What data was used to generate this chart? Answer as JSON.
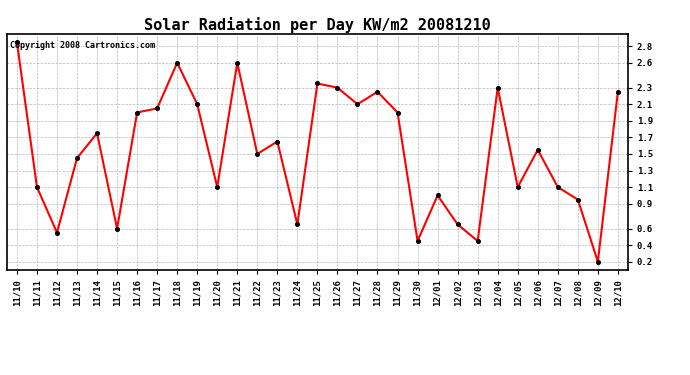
{
  "title": "Solar Radiation per Day KW/m2 20081210",
  "copyright": "Copyright 2008 Cartronics.com",
  "labels": [
    "11/10",
    "11/11",
    "11/12",
    "11/13",
    "11/14",
    "11/15",
    "11/16",
    "11/17",
    "11/18",
    "11/19",
    "11/20",
    "11/21",
    "11/22",
    "11/23",
    "11/24",
    "11/25",
    "11/26",
    "11/27",
    "11/28",
    "11/29",
    "11/30",
    "12/01",
    "12/02",
    "12/03",
    "12/04",
    "12/05",
    "12/06",
    "12/07",
    "12/08",
    "12/09",
    "12/10"
  ],
  "values": [
    2.85,
    1.1,
    0.55,
    1.45,
    1.75,
    0.6,
    2.0,
    2.05,
    2.6,
    2.1,
    1.1,
    2.6,
    1.5,
    1.65,
    0.65,
    2.35,
    2.3,
    2.1,
    2.25,
    2.0,
    0.45,
    1.0,
    0.65,
    0.45,
    2.3,
    1.1,
    1.55,
    1.1,
    0.95,
    0.2,
    2.25
  ],
  "line_color": "#ff0000",
  "marker_facecolor": "#000000",
  "marker_edgecolor": "#000000",
  "bg_color": "#ffffff",
  "grid_color": "#b0b0b0",
  "ylim": [
    0.1,
    2.95
  ],
  "ytick_vals": [
    0.2,
    0.4,
    0.6,
    0.9,
    1.1,
    1.3,
    1.5,
    1.7,
    1.9,
    2.1,
    2.3,
    2.6,
    2.8
  ],
  "title_fontsize": 11,
  "tick_fontsize": 6.5,
  "copyright_fontsize": 6
}
